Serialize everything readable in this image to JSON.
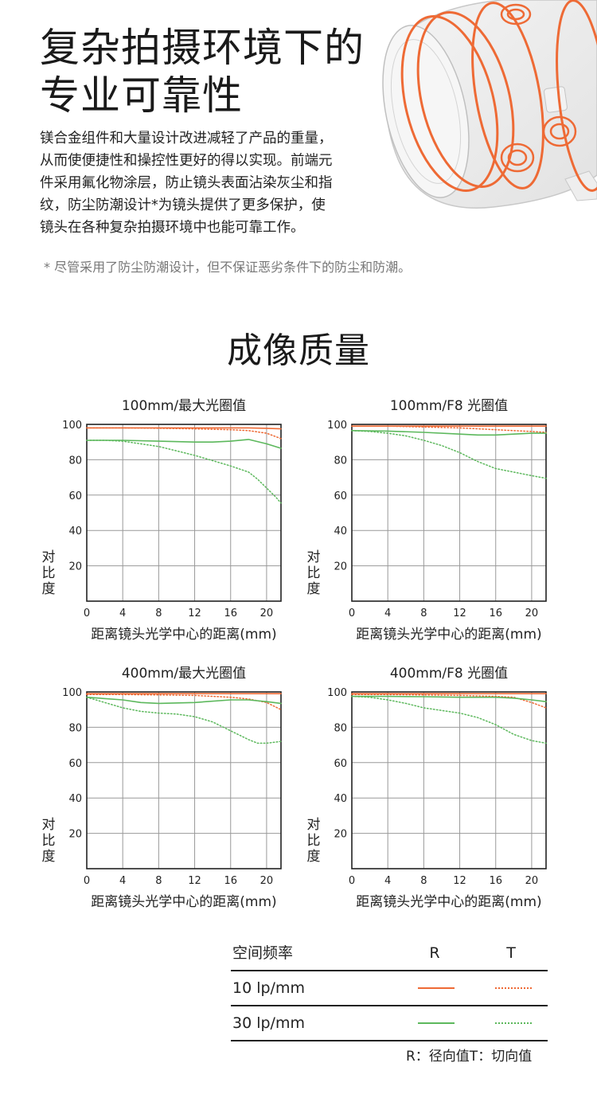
{
  "hero": {
    "title_lines": [
      "复杂拍摄环境下的",
      "专业可靠性"
    ],
    "body_lines": [
      "镁合金组件和大量设计改进减轻了产品的重量，",
      "从而使便捷性和操控性更好的得以实现。前端元",
      "件采用氟化物涂层，防止镜头表面沾染灰尘和指",
      "纹，防尘防潮设计*为镜头提供了更多保护，使",
      "镜头在各种复杂拍摄环境中也能可靠工作。"
    ],
    "footnote": "* 尽管采用了防尘防潮设计，但不保证恶劣条件下的防尘和防潮。"
  },
  "section_title": "成像质量",
  "colors": {
    "r10": "#ee6a35",
    "t10": "#ee6a35",
    "r30": "#5cb85c",
    "t30": "#5cb85c",
    "grid": "#999999",
    "axis": "#222222"
  },
  "chart_data": [
    {
      "type": "line",
      "title": "100mm/最大光圈值",
      "xlabel": "距离镜头光学中心的距离(mm)",
      "ylabel": "对比度",
      "xlim": [
        0,
        21.6
      ],
      "ylim": [
        0,
        100
      ],
      "xticks": [
        0,
        4,
        8,
        12,
        16,
        20
      ],
      "yticks": [
        20,
        40,
        60,
        80,
        100
      ],
      "grid": true,
      "series": [
        {
          "key": "r10",
          "x": [
            0,
            4,
            8,
            12,
            16,
            18,
            20,
            21.6
          ],
          "y": [
            98,
            98,
            98,
            98,
            98,
            98,
            97.8,
            97.5
          ]
        },
        {
          "key": "t10",
          "x": [
            0,
            4,
            8,
            12,
            16,
            18,
            20,
            21.6
          ],
          "y": [
            98,
            98,
            97.8,
            97.5,
            97,
            96.5,
            95,
            92
          ]
        },
        {
          "key": "r30",
          "x": [
            0,
            4,
            8,
            12,
            14,
            16,
            18,
            20,
            21.6
          ],
          "y": [
            91,
            91,
            90.5,
            90,
            90,
            90.5,
            91.5,
            89,
            86.5
          ]
        },
        {
          "key": "t30",
          "x": [
            0,
            2,
            4,
            6,
            8,
            10,
            12,
            14,
            16,
            18,
            19,
            20,
            21,
            21.6
          ],
          "y": [
            91,
            91,
            90.5,
            89,
            87.5,
            85,
            82.5,
            79.5,
            76.5,
            73,
            69,
            64,
            59,
            55.5
          ]
        }
      ]
    },
    {
      "type": "line",
      "title": "100mm/F8  光圈值",
      "xlabel": "距离镜头光学中心的距离(mm)",
      "ylabel": "对比度",
      "xlim": [
        0,
        21.6
      ],
      "ylim": [
        0,
        100
      ],
      "xticks": [
        0,
        4,
        8,
        12,
        16,
        20
      ],
      "yticks": [
        20,
        40,
        60,
        80,
        100
      ],
      "grid": true,
      "series": [
        {
          "key": "r10",
          "x": [
            0,
            4,
            8,
            12,
            16,
            20,
            21.6
          ],
          "y": [
            99,
            99,
            99,
            99,
            99,
            99,
            99
          ]
        },
        {
          "key": "t10",
          "x": [
            0,
            4,
            8,
            12,
            16,
            20,
            21.6
          ],
          "y": [
            99,
            99,
            98.5,
            98,
            97,
            96,
            95.5
          ]
        },
        {
          "key": "r30",
          "x": [
            0,
            4,
            8,
            12,
            14,
            16,
            18,
            20,
            21.6
          ],
          "y": [
            96.5,
            96.2,
            95.5,
            94.5,
            94,
            94,
            94.5,
            95,
            95
          ]
        },
        {
          "key": "t30",
          "x": [
            0,
            2,
            4,
            6,
            8,
            10,
            12,
            14,
            16,
            18,
            20,
            21.6
          ],
          "y": [
            96.5,
            96,
            95,
            93.5,
            91,
            88,
            84,
            79,
            75,
            73,
            71,
            69.5
          ]
        }
      ]
    },
    {
      "type": "line",
      "title": "400mm/最大光圈值",
      "xlabel": "距离镜头光学中心的距离(mm)",
      "ylabel": "对比度",
      "xlim": [
        0,
        21.6
      ],
      "ylim": [
        0,
        100
      ],
      "xticks": [
        0,
        4,
        8,
        12,
        16,
        20
      ],
      "yticks": [
        20,
        40,
        60,
        80,
        100
      ],
      "grid": true,
      "series": [
        {
          "key": "r10",
          "x": [
            0,
            4,
            8,
            12,
            16,
            20,
            21.6
          ],
          "y": [
            99,
            99,
            99,
            99,
            99,
            99,
            99
          ]
        },
        {
          "key": "t10",
          "x": [
            0,
            4,
            8,
            12,
            16,
            18,
            20,
            21.6
          ],
          "y": [
            98.5,
            98.5,
            98.3,
            98,
            97,
            96,
            94,
            90
          ]
        },
        {
          "key": "r30",
          "x": [
            0,
            4,
            6,
            8,
            12,
            16,
            18,
            20,
            21.6
          ],
          "y": [
            97,
            95.5,
            94,
            93.5,
            94,
            95.5,
            95.5,
            94.5,
            93.5
          ]
        },
        {
          "key": "t30",
          "x": [
            0,
            2,
            4,
            6,
            8,
            10,
            12,
            14,
            16,
            18,
            19,
            20,
            21.6
          ],
          "y": [
            97,
            94,
            91,
            89,
            88,
            87.5,
            86,
            83,
            78,
            73,
            71,
            71,
            72
          ]
        }
      ]
    },
    {
      "type": "line",
      "title": "400mm/F8  光圈值",
      "xlabel": "距离镜头光学中心的距离(mm)",
      "ylabel": "对比度",
      "xlim": [
        0,
        21.6
      ],
      "ylim": [
        0,
        100
      ],
      "xticks": [
        0,
        4,
        8,
        12,
        16,
        20
      ],
      "yticks": [
        20,
        40,
        60,
        80,
        100
      ],
      "grid": true,
      "series": [
        {
          "key": "r10",
          "x": [
            0,
            4,
            8,
            12,
            16,
            20,
            21.6
          ],
          "y": [
            99,
            99,
            99,
            99,
            99,
            99,
            99
          ]
        },
        {
          "key": "t10",
          "x": [
            0,
            4,
            8,
            12,
            16,
            18,
            20,
            21.6
          ],
          "y": [
            98.5,
            98.5,
            98.3,
            98,
            97.5,
            97,
            94,
            91
          ]
        },
        {
          "key": "r30",
          "x": [
            0,
            4,
            8,
            12,
            16,
            18,
            20,
            21.6
          ],
          "y": [
            97.5,
            97.5,
            97.3,
            97,
            97,
            96.5,
            95.5,
            94.5
          ]
        },
        {
          "key": "t30",
          "x": [
            0,
            2,
            4,
            6,
            8,
            10,
            12,
            14,
            16,
            18,
            20,
            21.6
          ],
          "y": [
            97.5,
            97,
            95.5,
            93.5,
            91,
            89.5,
            88,
            85.5,
            81.5,
            76,
            72.5,
            71
          ]
        }
      ]
    }
  ],
  "legend": {
    "header": {
      "label": "空间频率",
      "r": "R",
      "t": "T"
    },
    "rows": [
      {
        "label": "10 lp/mm"
      },
      {
        "label": "30 lp/mm"
      }
    ],
    "note": "R：径向值T：切向值"
  }
}
